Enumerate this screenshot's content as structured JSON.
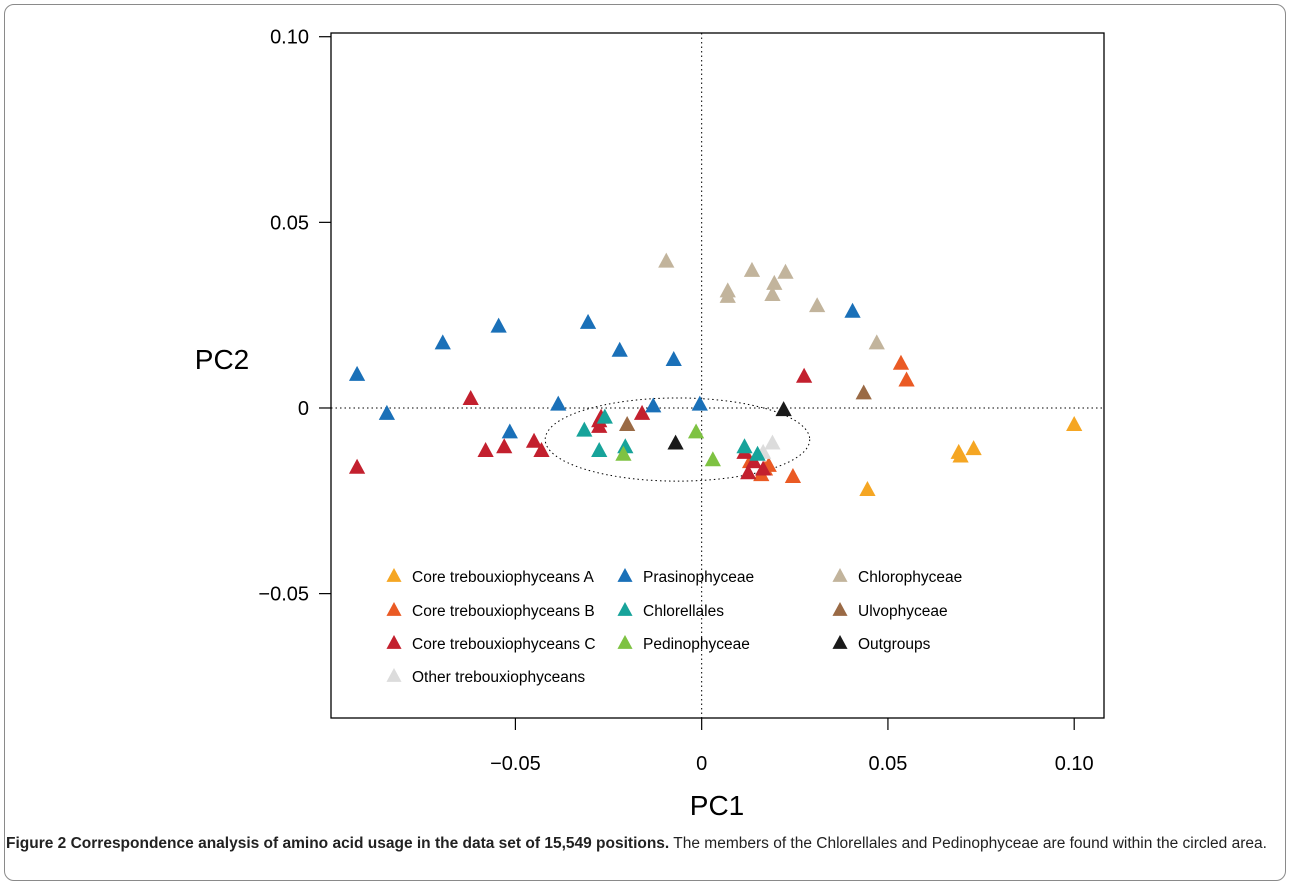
{
  "chart_data": {
    "type": "scatter",
    "xlabel": "PC1",
    "ylabel": "PC2",
    "xlim": [
      -0.0995,
      0.108
    ],
    "ylim": [
      -0.0835,
      0.101
    ],
    "xticks": [
      -0.05,
      0,
      0.05,
      0.1
    ],
    "xtick_labels": [
      "−0.05",
      "0",
      "0.05",
      "0.10"
    ],
    "yticks": [
      -0.05,
      0,
      0.05,
      0.1
    ],
    "ytick_labels": [
      "−0.05",
      "0",
      "0.05",
      "0.10"
    ],
    "grid": false,
    "reference_lines": {
      "x": 0,
      "y": 0,
      "style": "dotted"
    },
    "ellipse": {
      "cx": -0.0065,
      "cy": -0.0085,
      "rx": 0.0355,
      "ry": 0.0112
    },
    "legend_position": "bottom-left inside",
    "series": [
      {
        "name": "Core trebouxiophyceans A",
        "color": "#f5a623",
        "points": [
          [
            0.069,
            -0.012
          ],
          [
            0.0695,
            -0.013
          ],
          [
            0.073,
            -0.011
          ],
          [
            0.1,
            -0.0045
          ],
          [
            0.0445,
            -0.022
          ]
        ]
      },
      {
        "name": "Core trebouxiophyceans B",
        "color": "#ea5a24",
        "points": [
          [
            0.0535,
            0.012
          ],
          [
            0.055,
            0.0075
          ],
          [
            0.017,
            -0.0165
          ],
          [
            0.018,
            -0.0155
          ],
          [
            0.016,
            -0.018
          ],
          [
            0.0245,
            -0.0185
          ],
          [
            0.013,
            -0.0145
          ]
        ]
      },
      {
        "name": "Core trebouxiophyceans C",
        "color": "#c3202e",
        "points": [
          [
            -0.0925,
            -0.016
          ],
          [
            -0.062,
            0.0025
          ],
          [
            -0.058,
            -0.0115
          ],
          [
            -0.053,
            -0.0105
          ],
          [
            -0.045,
            -0.009
          ],
          [
            -0.043,
            -0.0115
          ],
          [
            -0.0275,
            -0.0035
          ],
          [
            -0.027,
            -0.0025
          ],
          [
            -0.0275,
            -0.005
          ],
          [
            -0.016,
            -0.0015
          ],
          [
            0.0115,
            -0.012
          ],
          [
            0.0125,
            -0.0175
          ],
          [
            0.0165,
            -0.0165
          ],
          [
            0.0275,
            0.0085
          ],
          [
            0.014,
            -0.0145
          ]
        ]
      },
      {
        "name": "Other trebouxiophyceans",
        "color": "#dcdcdc",
        "points": [
          [
            0.019,
            -0.0095
          ],
          [
            0.0165,
            -0.012
          ]
        ]
      },
      {
        "name": "Prasinophyceae",
        "color": "#1a70b8",
        "points": [
          [
            -0.0925,
            0.009
          ],
          [
            -0.0845,
            -0.0015
          ],
          [
            -0.0695,
            0.0175
          ],
          [
            -0.0545,
            0.022
          ],
          [
            -0.0515,
            -0.0065
          ],
          [
            -0.0385,
            0.001
          ],
          [
            -0.0305,
            0.023
          ],
          [
            -0.022,
            0.0155
          ],
          [
            -0.013,
            0.0005
          ],
          [
            -0.0075,
            0.013
          ],
          [
            -0.0005,
            0.001
          ],
          [
            0.0405,
            0.026
          ]
        ]
      },
      {
        "name": "Chlorellales",
        "color": "#17a39a",
        "points": [
          [
            -0.0315,
            -0.006
          ],
          [
            -0.0275,
            -0.0115
          ],
          [
            -0.026,
            -0.0025
          ],
          [
            -0.0205,
            -0.0105
          ],
          [
            0.0115,
            -0.0105
          ],
          [
            0.015,
            -0.0125
          ]
        ]
      },
      {
        "name": "Pedinophyceae",
        "color": "#7ec242",
        "points": [
          [
            -0.021,
            -0.0125
          ],
          [
            -0.0015,
            -0.0065
          ],
          [
            0.003,
            -0.014
          ]
        ]
      },
      {
        "name": "Chlorophyceae",
        "color": "#c2b49c",
        "points": [
          [
            -0.0095,
            0.0395
          ],
          [
            0.007,
            0.0315
          ],
          [
            0.007,
            0.03
          ],
          [
            0.0135,
            0.037
          ],
          [
            0.019,
            0.0305
          ],
          [
            0.0195,
            0.0335
          ],
          [
            0.0225,
            0.0365
          ],
          [
            0.031,
            0.0275
          ],
          [
            0.047,
            0.0175
          ]
        ]
      },
      {
        "name": "Ulvophyceae",
        "color": "#9a6a45",
        "points": [
          [
            -0.02,
            -0.0045
          ],
          [
            0.0435,
            0.004
          ]
        ]
      },
      {
        "name": "Outgroups",
        "color": "#1a1a1a",
        "points": [
          [
            -0.007,
            -0.0095
          ],
          [
            0.022,
            -0.0005
          ]
        ]
      }
    ],
    "legend_columns": [
      [
        "Core trebouxiophyceans A",
        "Core trebouxiophyceans B",
        "Core trebouxiophyceans C",
        "Other trebouxiophyceans"
      ],
      [
        "Prasinophyceae",
        "Chlorellales",
        "Pedinophyceae"
      ],
      [
        "Chlorophyceae",
        "Ulvophyceae",
        "Outgroups"
      ]
    ]
  },
  "caption": {
    "bold": "Figure 2 Correspondence analysis of amino acid usage in the data set of 15,549 positions.",
    "text": " The members of the Chlorellales and Pedinophyceae are found within the circled area."
  }
}
